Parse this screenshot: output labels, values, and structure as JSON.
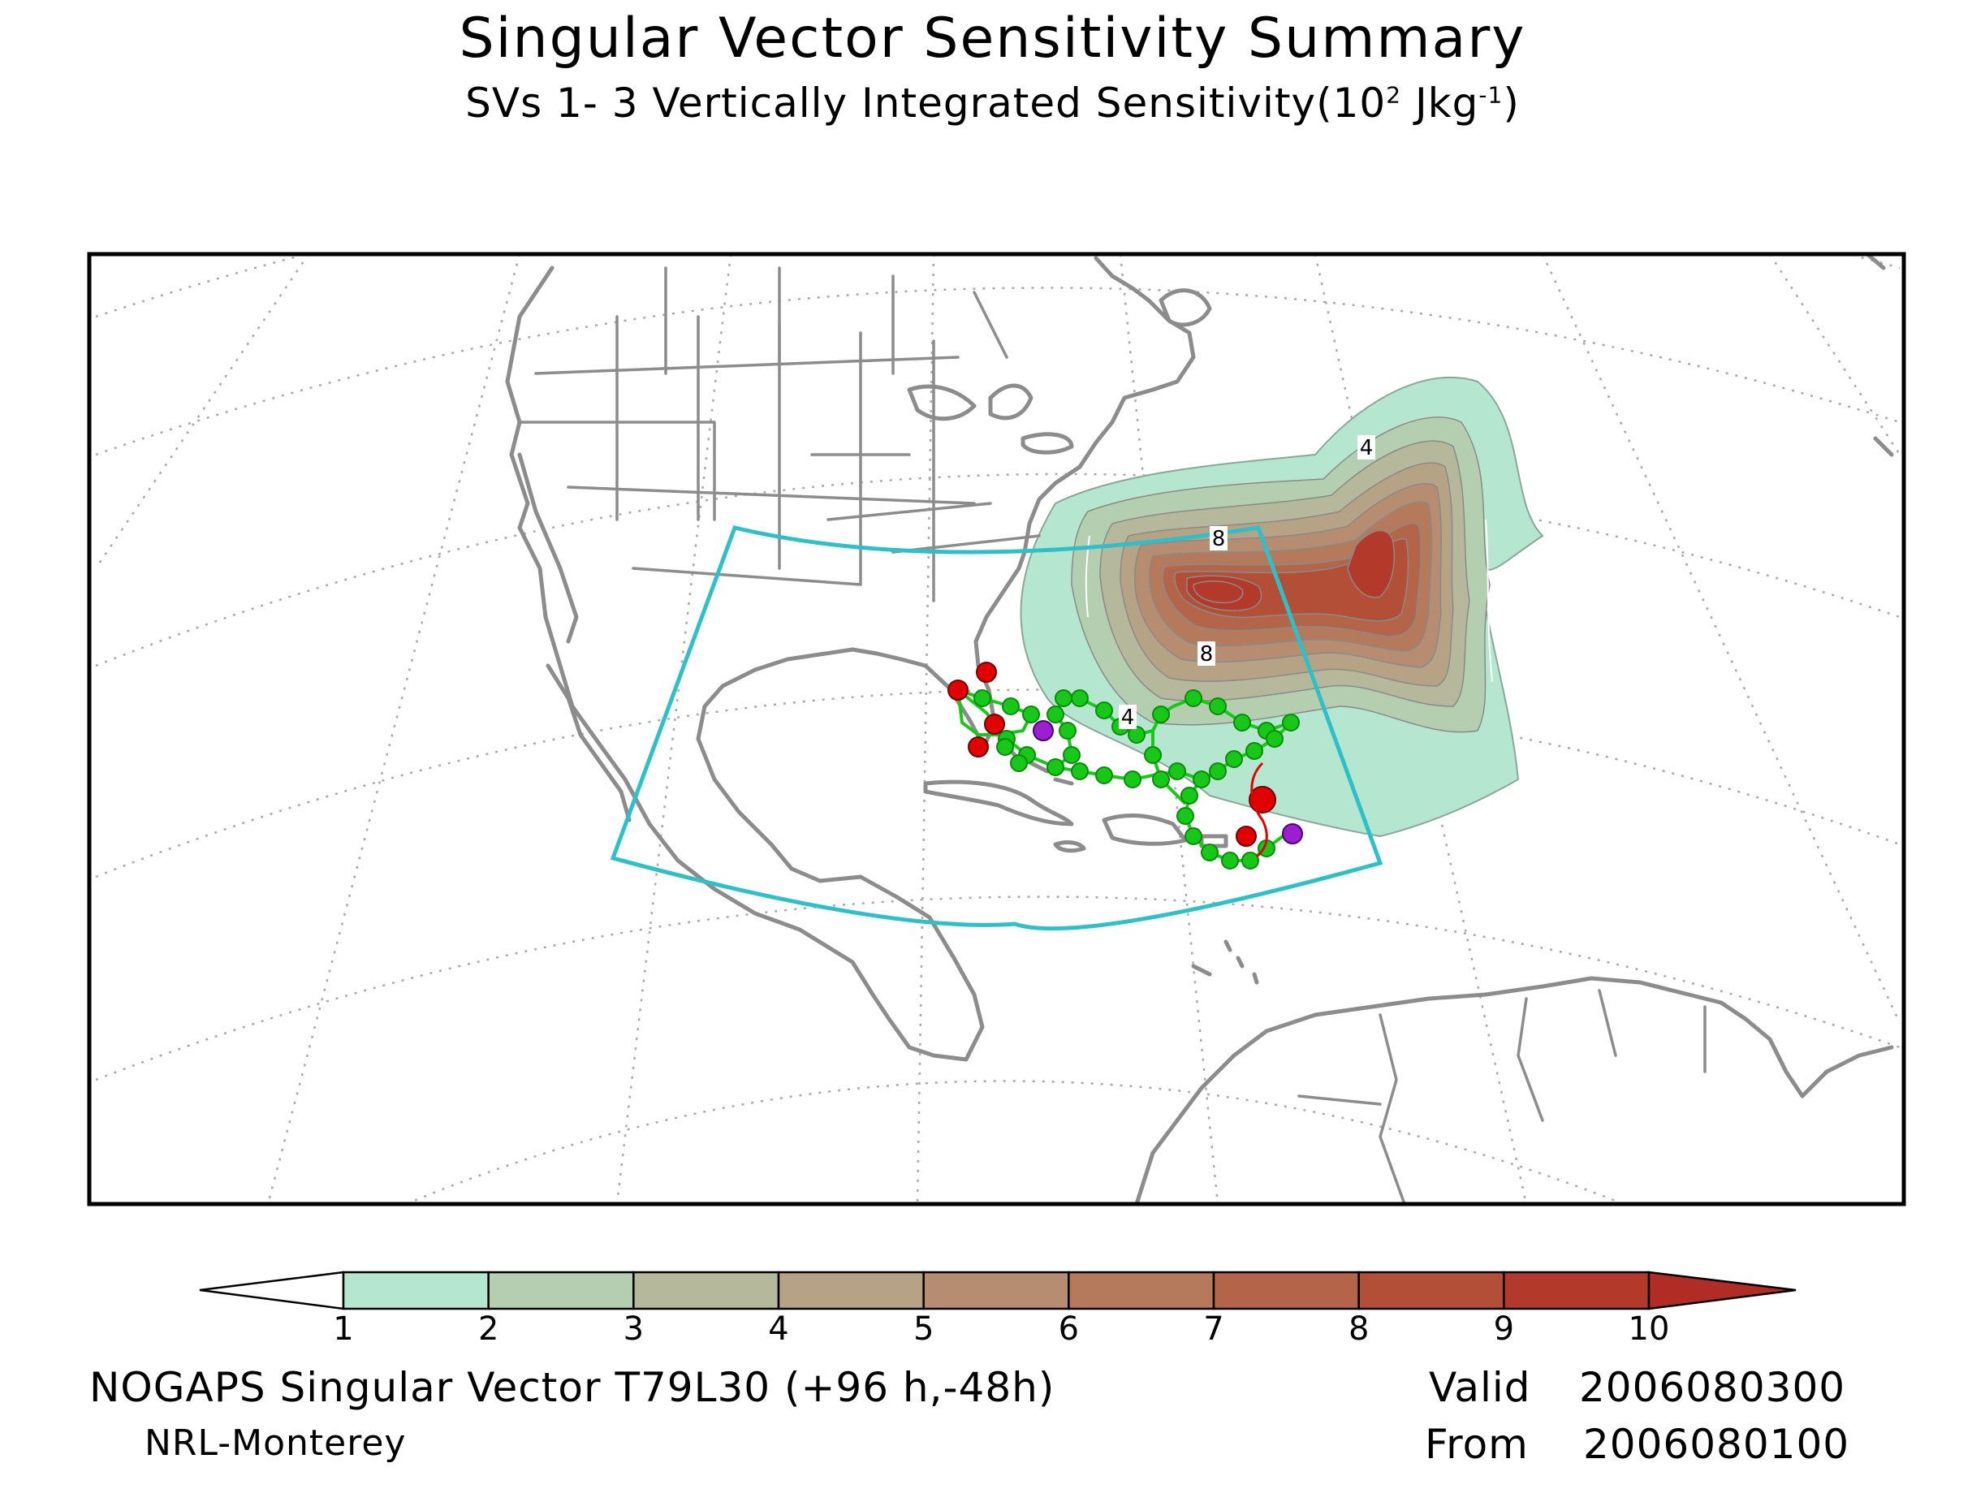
{
  "title": "Singular Vector Sensitivity Summary",
  "subtitle": {
    "prefix": "SVs 1- 3  Vertically Integrated Sensitivity(10",
    "exp1": "2",
    "mid": " Jkg",
    "exp2": "-1",
    "suffix": ")"
  },
  "contour_labels": [
    "4",
    "8",
    "8",
    "4"
  ],
  "colorbar": {
    "ticks": [
      "1",
      "2",
      "3",
      "4",
      "5",
      "6",
      "7",
      "8",
      "9",
      "10"
    ],
    "colors": [
      "#b5e6cf",
      "#b3cfb0",
      "#b5b89b",
      "#b6a386",
      "#b68d70",
      "#b5795b",
      "#b46448",
      "#b34f37",
      "#b33a2a",
      "#b02c24"
    ]
  },
  "footer": {
    "model": "NOGAPS Singular Vector T79L30 (+96 h,-48h)",
    "org": "NRL-Monterey",
    "valid_label": "Valid",
    "valid_value": "2006080300",
    "from_label": "From",
    "from_value": "2006080100"
  },
  "colors": {
    "coast": "#8c8c8c",
    "target_box": "#2fbfc8",
    "track": "#18c818",
    "initial": "#e00000",
    "final": "#9b1fd1"
  }
}
